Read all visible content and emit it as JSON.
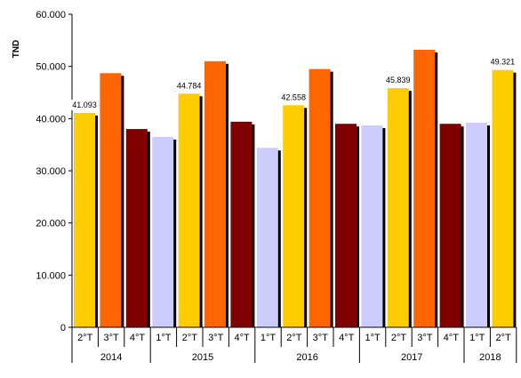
{
  "chart_data": {
    "type": "bar",
    "ylabel": "TND",
    "ylim": [
      0,
      60000
    ],
    "yticks": [
      "0",
      "10.000",
      "20.000",
      "30.000",
      "40.000",
      "50.000",
      "60.000"
    ],
    "ytick_values": [
      0,
      10000,
      20000,
      30000,
      40000,
      50000,
      60000
    ],
    "grid": false,
    "legend": "none",
    "colors": {
      "1°T": "#ccccff",
      "2°T": "#ffcc00",
      "3°T": "#ff6600",
      "4°T": "#800000",
      "shadow": "#000000"
    },
    "groups": [
      {
        "year": "2014",
        "bars": [
          {
            "quarter": "2°T",
            "value": 41093,
            "label": "41.093"
          },
          {
            "quarter": "3°T",
            "value": 48700,
            "label": ""
          },
          {
            "quarter": "4°T",
            "value": 38000,
            "label": ""
          }
        ]
      },
      {
        "year": "2015",
        "bars": [
          {
            "quarter": "1°T",
            "value": 36500,
            "label": ""
          },
          {
            "quarter": "2°T",
            "value": 44784,
            "label": "44.784"
          },
          {
            "quarter": "3°T",
            "value": 51000,
            "label": ""
          },
          {
            "quarter": "4°T",
            "value": 39400,
            "label": ""
          }
        ]
      },
      {
        "year": "2016",
        "bars": [
          {
            "quarter": "1°T",
            "value": 34400,
            "label": ""
          },
          {
            "quarter": "2°T",
            "value": 42558,
            "label": "42.558"
          },
          {
            "quarter": "3°T",
            "value": 49500,
            "label": ""
          },
          {
            "quarter": "4°T",
            "value": 39000,
            "label": ""
          }
        ]
      },
      {
        "year": "2017",
        "bars": [
          {
            "quarter": "1°T",
            "value": 38700,
            "label": ""
          },
          {
            "quarter": "2°T",
            "value": 45839,
            "label": "45.839"
          },
          {
            "quarter": "3°T",
            "value": 53200,
            "label": ""
          },
          {
            "quarter": "4°T",
            "value": 39000,
            "label": ""
          }
        ]
      },
      {
        "year": "2018",
        "bars": [
          {
            "quarter": "1°T",
            "value": 39200,
            "label": ""
          },
          {
            "quarter": "2°T",
            "value": 49321,
            "label": "49.321"
          }
        ]
      }
    ]
  }
}
